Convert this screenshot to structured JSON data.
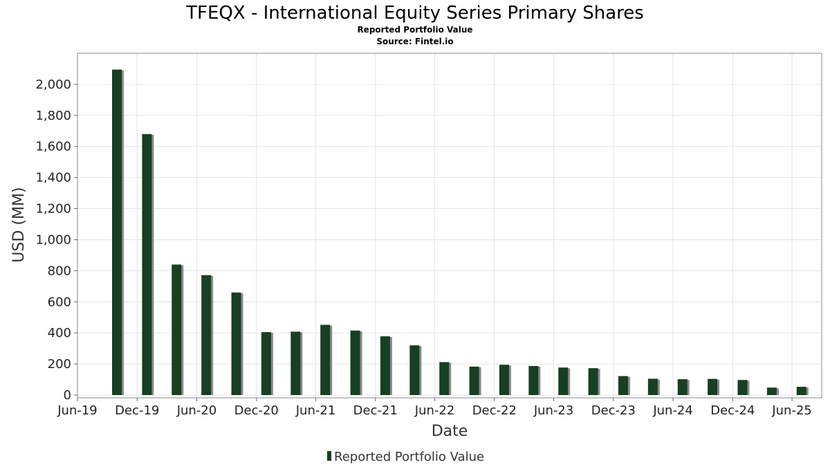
{
  "chart_data": {
    "type": "bar",
    "title": "TFEQX - International Equity Series Primary Shares",
    "subtitle_lines": [
      "Reported Portfolio Value",
      "Source: Fintel.io"
    ],
    "xlabel": "Date",
    "ylabel": "USD (MM)",
    "ylim": [
      0,
      2200
    ],
    "y_ticks": [
      0,
      200,
      400,
      600,
      800,
      1000,
      1200,
      1400,
      1600,
      1800,
      2000
    ],
    "y_tick_labels": [
      "0",
      "200",
      "400",
      "600",
      "800",
      "1,000",
      "1,200",
      "1,400",
      "1,600",
      "1,800",
      "2,000"
    ],
    "x_range": [
      "2019-06-01",
      "2025-08-31"
    ],
    "x_ticks": [
      {
        "date": "2019-06-01",
        "label": "Jun-19"
      },
      {
        "date": "2019-12-01",
        "label": "Dec-19"
      },
      {
        "date": "2020-06-01",
        "label": "Jun-20"
      },
      {
        "date": "2020-12-01",
        "label": "Dec-20"
      },
      {
        "date": "2021-06-01",
        "label": "Jun-21"
      },
      {
        "date": "2021-12-01",
        "label": "Dec-21"
      },
      {
        "date": "2022-06-01",
        "label": "Jun-22"
      },
      {
        "date": "2022-12-01",
        "label": "Dec-22"
      },
      {
        "date": "2023-06-01",
        "label": "Jun-23"
      },
      {
        "date": "2023-12-01",
        "label": "Dec-23"
      },
      {
        "date": "2024-06-01",
        "label": "Jun-24"
      },
      {
        "date": "2024-12-01",
        "label": "Dec-24"
      },
      {
        "date": "2025-06-01",
        "label": "Jun-25"
      }
    ],
    "grid": true,
    "legend_position": "bottom-center",
    "series": [
      {
        "name": "Reported Portfolio Value",
        "color": "#173f22",
        "points": [
          {
            "x": "2019-09-30",
            "y": 2095
          },
          {
            "x": "2019-12-31",
            "y": 1680
          },
          {
            "x": "2020-03-31",
            "y": 840
          },
          {
            "x": "2020-06-30",
            "y": 772
          },
          {
            "x": "2020-09-30",
            "y": 660
          },
          {
            "x": "2020-12-31",
            "y": 405
          },
          {
            "x": "2021-03-31",
            "y": 408
          },
          {
            "x": "2021-06-30",
            "y": 452
          },
          {
            "x": "2021-09-30",
            "y": 415
          },
          {
            "x": "2021-12-31",
            "y": 378
          },
          {
            "x": "2022-03-31",
            "y": 320
          },
          {
            "x": "2022-06-30",
            "y": 212
          },
          {
            "x": "2022-09-30",
            "y": 183
          },
          {
            "x": "2022-12-31",
            "y": 195
          },
          {
            "x": "2023-03-31",
            "y": 187
          },
          {
            "x": "2023-06-30",
            "y": 177
          },
          {
            "x": "2023-09-30",
            "y": 173
          },
          {
            "x": "2023-12-31",
            "y": 122
          },
          {
            "x": "2024-03-31",
            "y": 105
          },
          {
            "x": "2024-06-30",
            "y": 102
          },
          {
            "x": "2024-09-30",
            "y": 104
          },
          {
            "x": "2024-12-31",
            "y": 97
          },
          {
            "x": "2025-03-31",
            "y": 48
          },
          {
            "x": "2025-06-30",
            "y": 53
          }
        ]
      }
    ],
    "colors": {
      "bar": "#173f22",
      "bar_shadow": "#8a8a8a",
      "grid": "#e4e4e4",
      "frame": "#888888"
    }
  }
}
